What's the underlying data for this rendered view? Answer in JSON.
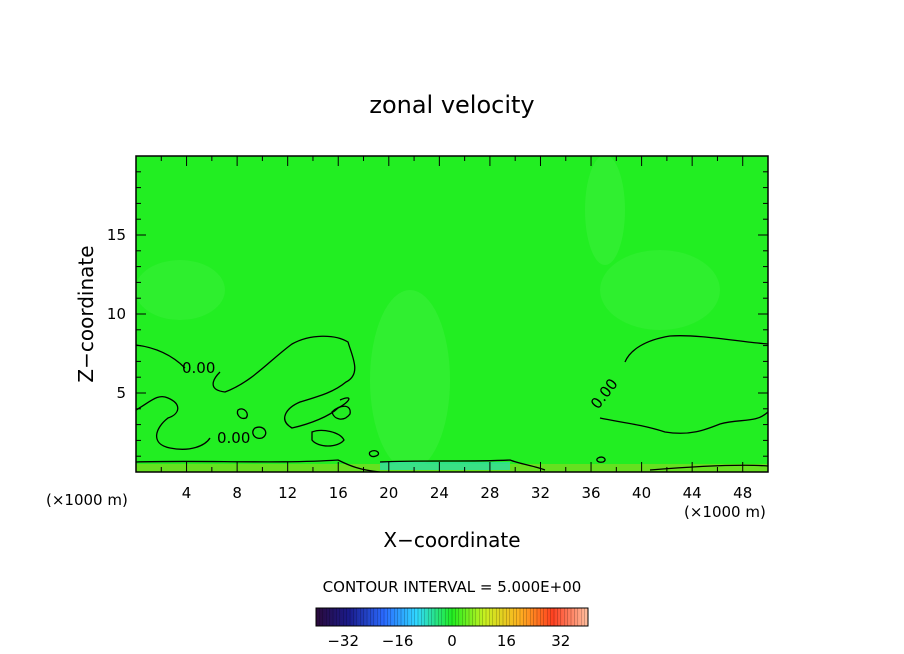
{
  "chart_data": {
    "type": "heatmap",
    "title": "zonal velocity",
    "xlabel": "X−coordinate",
    "ylabel": "Z−coordinate",
    "x_unit_left": "(×1000 m)",
    "x_unit_right": "(×1000 m)",
    "xlim": [
      0,
      50
    ],
    "ylim": [
      0,
      20
    ],
    "x_ticks": [
      "4",
      "8",
      "12",
      "16",
      "20",
      "24",
      "28",
      "32",
      "36",
      "40",
      "44",
      "48"
    ],
    "y_ticks": [
      "5",
      "10",
      "15"
    ],
    "contour_labels": [
      "0.00",
      "0.00",
      "0.00"
    ],
    "contour_interval_label": "CONTOUR INTERVAL = 5.000E+00",
    "contour_interval": 5.0,
    "colorbar": {
      "range": [
        -40,
        40
      ],
      "ticks": [
        "−32",
        "−16",
        "0",
        "16",
        "32"
      ]
    },
    "field_color": "#22ee22",
    "contour_color": "#000000"
  }
}
